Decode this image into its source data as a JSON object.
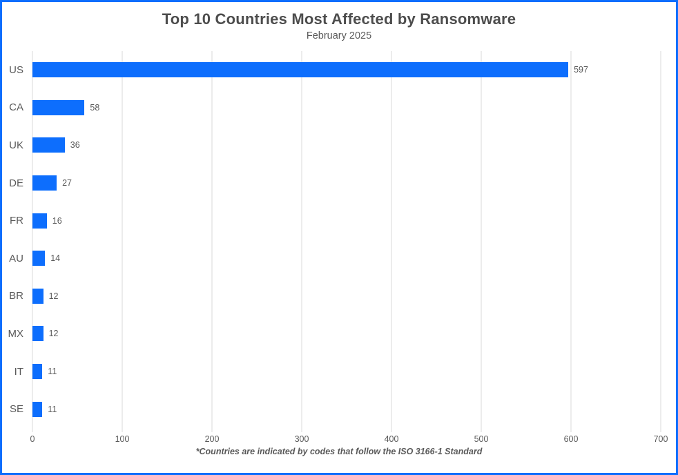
{
  "chart_data": {
    "type": "bar",
    "orientation": "horizontal",
    "title": "Top 10 Countries Most Affected by Ransomware",
    "subtitle": "February 2025",
    "categories": [
      "US",
      "CA",
      "UK",
      "DE",
      "FR",
      "AU",
      "BR",
      "MX",
      "IT",
      "SE"
    ],
    "values": [
      597,
      58,
      36,
      27,
      16,
      14,
      12,
      12,
      11,
      11
    ],
    "value_labels": [
      "597",
      "58",
      "36",
      "27",
      "16",
      "14",
      "12",
      "12",
      "11",
      "11"
    ],
    "xlim": [
      0,
      700
    ],
    "x_ticks": [
      0,
      100,
      200,
      300,
      400,
      500,
      600,
      700
    ],
    "grid": "vertical",
    "legend": "none",
    "note": "*Countries are indicated by codes that follow the ISO 3166-1 Standard",
    "colors": {
      "bar": "#0d6efd",
      "frame_border": "#0d6efd",
      "gridline": "#d9d9d9",
      "title_text": "#4d4d4d",
      "axis_text": "#595959"
    }
  }
}
